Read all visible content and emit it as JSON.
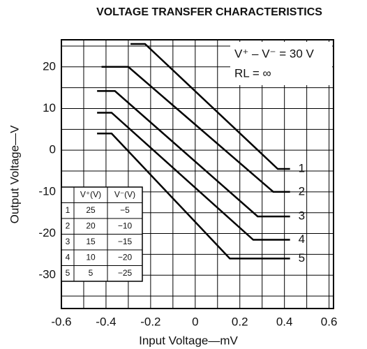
{
  "chart_data": {
    "type": "line",
    "title": "VOLTAGE TRANSFER CHARACTERISTICS",
    "x_label": "Input Voltage—mV",
    "y_label": "Output Voltage—V",
    "annotations": [
      "V⁺ – V⁻ = 30 V",
      "RL = ∞"
    ],
    "xlim": [
      -0.6,
      0.62
    ],
    "ylim": [
      -38,
      26.5
    ],
    "xticks": [
      -0.6,
      -0.4,
      -0.2,
      0,
      0.2,
      0.4,
      0.6
    ],
    "yticks": [
      -30,
      -20,
      -10,
      0,
      10,
      20
    ],
    "xgrid_minor": [
      -0.5,
      -0.3,
      -0.1,
      0.1,
      0.3,
      0.5
    ],
    "ygrid_minor": [
      -35,
      -25,
      -15,
      -5,
      5,
      15,
      25
    ],
    "grid": true,
    "series": [
      {
        "name": "1",
        "color": "#000000",
        "x": [
          -0.29,
          -0.225,
          0.37,
          0.425
        ],
        "values": [
          25.5,
          25.5,
          -4.5,
          -4.5
        ]
      },
      {
        "name": "2",
        "color": "#000000",
        "x": [
          -0.42,
          -0.3,
          0.35,
          0.425
        ],
        "values": [
          20,
          20,
          -10,
          -10
        ]
      },
      {
        "name": "3",
        "color": "#000000",
        "x": [
          -0.44,
          -0.36,
          0.28,
          0.425
        ],
        "values": [
          14.2,
          14.2,
          -15.9,
          -15.9
        ]
      },
      {
        "name": "4",
        "color": "#000000",
        "x": [
          -0.44,
          -0.375,
          0.26,
          0.425
        ],
        "values": [
          9,
          9,
          -21.5,
          -21.5
        ]
      },
      {
        "name": "5",
        "color": "#000000",
        "x": [
          -0.44,
          -0.375,
          0.155,
          0.425
        ],
        "values": [
          4,
          4,
          -26,
          -26
        ]
      }
    ],
    "table": {
      "header": [
        "V⁺(V)",
        "V⁻(V)"
      ],
      "rows": [
        [
          "1",
          "25",
          "−5"
        ],
        [
          "2",
          "20",
          "−10"
        ],
        [
          "3",
          "15",
          "−15"
        ],
        [
          "4",
          "10",
          "−20"
        ],
        [
          "5",
          "5",
          "−25"
        ]
      ]
    }
  }
}
